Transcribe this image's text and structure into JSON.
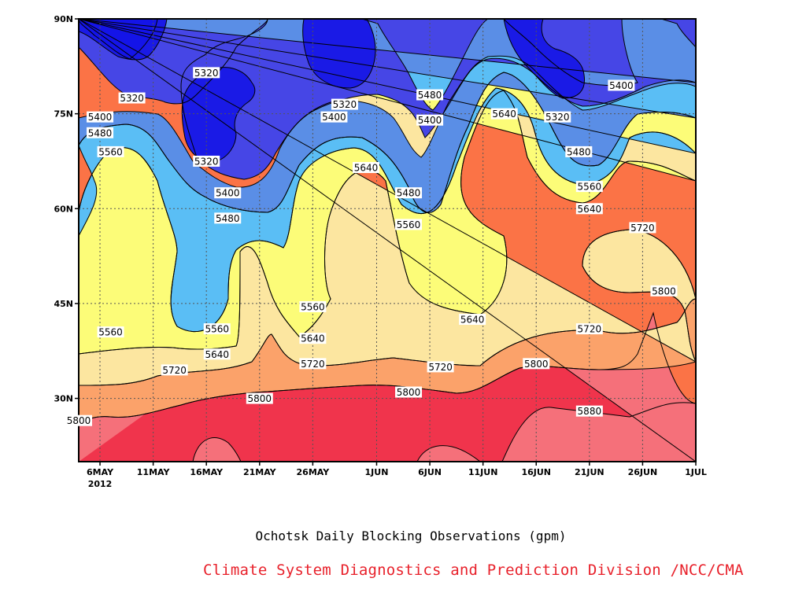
{
  "chart_data": {
    "type": "heatmap",
    "variable_unit": "gpm",
    "x_ticks": [
      "6MAY",
      "11MAY",
      "16MAY",
      "21MAY",
      "26MAY",
      "1JUN",
      "6JUN",
      "11JUN",
      "16JUN",
      "21JUN",
      "26JUN",
      "1JUL"
    ],
    "x_year_label": "2012",
    "y_ticks": [
      "30N",
      "45N",
      "60N",
      "75N",
      "90N"
    ],
    "xlim": [
      "2012-05-04",
      "2012-07-01"
    ],
    "ylim": [
      20,
      90
    ],
    "grid": true,
    "contour_levels": [
      5240,
      5320,
      5400,
      5480,
      5560,
      5640,
      5720,
      5800,
      5880,
      5960
    ],
    "contour_labels": [
      {
        "date": "2012-05-09",
        "lat": 77.5,
        "text": "5320"
      },
      {
        "date": "2012-05-16",
        "lat": 81.5,
        "text": "5320"
      },
      {
        "date": "2012-05-16",
        "lat": 67.5,
        "text": "5320"
      },
      {
        "date": "2012-05-29",
        "lat": 76.5,
        "text": "5320"
      },
      {
        "date": "2012-06-18",
        "lat": 74.5,
        "text": "5320"
      },
      {
        "date": "2012-05-06",
        "lat": 74.5,
        "text": "5400"
      },
      {
        "date": "2012-05-28",
        "lat": 74.5,
        "text": "5400"
      },
      {
        "date": "2012-06-06",
        "lat": 74.0,
        "text": "5400"
      },
      {
        "date": "2012-05-18",
        "lat": 62.5,
        "text": "5400"
      },
      {
        "date": "2012-06-24",
        "lat": 79.5,
        "text": "5400"
      },
      {
        "date": "2012-05-06",
        "lat": 72.0,
        "text": "5480"
      },
      {
        "date": "2012-06-06",
        "lat": 78.0,
        "text": "5480"
      },
      {
        "date": "2012-05-18",
        "lat": 58.5,
        "text": "5480"
      },
      {
        "date": "2012-06-04",
        "lat": 62.5,
        "text": "5480"
      },
      {
        "date": "2012-06-20",
        "lat": 69.0,
        "text": "5480"
      },
      {
        "date": "2012-05-07",
        "lat": 69.0,
        "text": "5560"
      },
      {
        "date": "2012-05-07",
        "lat": 40.5,
        "text": "5560"
      },
      {
        "date": "2012-05-17",
        "lat": 41.0,
        "text": "5560"
      },
      {
        "date": "2012-05-26",
        "lat": 44.5,
        "text": "5560"
      },
      {
        "date": "2012-06-04",
        "lat": 57.5,
        "text": "5560"
      },
      {
        "date": "2012-06-21",
        "lat": 63.5,
        "text": "5560"
      },
      {
        "date": "2012-05-31",
        "lat": 66.5,
        "text": "5640"
      },
      {
        "date": "2012-06-13",
        "lat": 75.0,
        "text": "5640"
      },
      {
        "date": "2012-05-17",
        "lat": 37.0,
        "text": "5640"
      },
      {
        "date": "2012-05-26",
        "lat": 39.5,
        "text": "5640"
      },
      {
        "date": "2012-06-10",
        "lat": 42.5,
        "text": "5640"
      },
      {
        "date": "2012-06-21",
        "lat": 60.0,
        "text": "5640"
      },
      {
        "date": "2012-05-13",
        "lat": 34.5,
        "text": "5720"
      },
      {
        "date": "2012-05-26",
        "lat": 35.5,
        "text": "5720"
      },
      {
        "date": "2012-06-07",
        "lat": 35.0,
        "text": "5720"
      },
      {
        "date": "2012-06-21",
        "lat": 41.0,
        "text": "5720"
      },
      {
        "date": "2012-06-26",
        "lat": 57.0,
        "text": "5720"
      },
      {
        "date": "2012-05-04",
        "lat": 26.5,
        "text": "5800"
      },
      {
        "date": "2012-05-21",
        "lat": 30.0,
        "text": "5800"
      },
      {
        "date": "2012-06-04",
        "lat": 31.0,
        "text": "5800"
      },
      {
        "date": "2012-06-16",
        "lat": 35.5,
        "text": "5800"
      },
      {
        "date": "2012-06-28",
        "lat": 47.0,
        "text": "5800"
      },
      {
        "date": "2012-06-21",
        "lat": 28.0,
        "text": "5880"
      }
    ],
    "colors": {
      "5240": "#1a1ae6",
      "5320": "#4646e6",
      "5400": "#5a8ee6",
      "5480": "#5abef5",
      "5560": "#fcfc78",
      "5640": "#fce6a0",
      "5720": "#fba26a",
      "5800": "#fb7346",
      "5880": "#f5707a",
      "5960": "#f0344c"
    }
  },
  "caption": "Ochotsk Daily Blocking Observations (gpm)",
  "credit": "Climate System Diagnostics and Prediction Division /NCC/CMA"
}
